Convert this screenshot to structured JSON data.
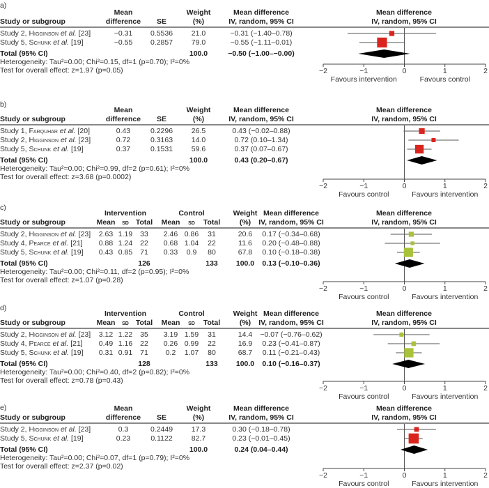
{
  "chart_data": [
    {
      "type": "forest",
      "label": "a)",
      "layout": "generic",
      "color": "#d9251d",
      "headers": {
        "study": "Study or subgroup",
        "md": [
          "Mean",
          "difference"
        ],
        "se": [
          "",
          "SE"
        ],
        "weight": [
          "Weight",
          "(%)"
        ],
        "ci": [
          "Mean difference",
          "IV, random, 95% CI"
        ],
        "plot": [
          "Mean difference",
          "IV, random, 95% CI"
        ]
      },
      "rows": [
        {
          "study": "Study 2,",
          "author": "Higginson",
          "etal": "et al.",
          "ref": "[23]",
          "md": "−0.31",
          "se": "0.5536",
          "weight": "21.0",
          "ci": "−0.31 (−1.40–0.78)",
          "est": -0.31,
          "lo": -1.4,
          "hi": 0.78,
          "w": 21.0
        },
        {
          "study": "Study 5,",
          "author": "Schunk",
          "etal": "et al.",
          "ref": "[19]",
          "md": "−0.55",
          "se": "0.2857",
          "weight": "79.0",
          "ci": "−0.55 (−1.11–0.01)",
          "est": -0.55,
          "lo": -1.11,
          "hi": 0.01,
          "w": 79.0
        }
      ],
      "total": {
        "label": "Total (95% CI)",
        "weight": "100.0",
        "ci": "−0.50 (−1.00–−0.00)",
        "est": -0.5,
        "lo": -1.0,
        "hi": -0.0
      },
      "heterogeneity": "Heterogeneity: Tau²=0.00; Chi²=0.15, df=1 (p=0.70); I²=0%",
      "overall": "Test for overall effect: z=1.97 (p=0.05)",
      "axis": {
        "min": -2,
        "max": 2,
        "ticks": [
          "−2",
          "−1",
          "0",
          "1",
          "2"
        ],
        "left_label": "Favours intervention",
        "right_label": "Favours control"
      }
    },
    {
      "type": "forest",
      "label": "b)",
      "layout": "generic",
      "color": "#d9251d",
      "headers": {
        "study": "Study or subgroup",
        "md": [
          "Mean",
          "difference"
        ],
        "se": [
          "",
          "SE"
        ],
        "weight": [
          "Weight",
          "(%)"
        ],
        "ci": [
          "Mean difference",
          "IV, random, 95% CI"
        ],
        "plot": [
          "Mean difference",
          "IV, random, 95% CI"
        ]
      },
      "rows": [
        {
          "study": "Study 1,",
          "author": "Farquhar",
          "etal": "et al.",
          "ref": "[20]",
          "md": "0.43",
          "se": "0.2296",
          "weight": "26.5",
          "ci": "0.43 (−0.02–0.88)",
          "est": 0.43,
          "lo": -0.02,
          "hi": 0.88,
          "w": 26.5
        },
        {
          "study": "Study 2,",
          "author": "Higginson",
          "etal": "et al.",
          "ref": "[23]",
          "md": "0.72",
          "se": "0.3163",
          "weight": "14.0",
          "ci": "0.72 (0.10–1.34)",
          "est": 0.72,
          "lo": 0.1,
          "hi": 1.34,
          "w": 14.0
        },
        {
          "study": "Study 5,",
          "author": "Schunk",
          "etal": "et al.",
          "ref": "[19]",
          "md": "0.37",
          "se": "0.1531",
          "weight": "59.6",
          "ci": "0.37 (0.07–0.67)",
          "est": 0.37,
          "lo": 0.07,
          "hi": 0.67,
          "w": 59.6
        }
      ],
      "total": {
        "label": "Total (95% CI)",
        "weight": "100.0",
        "ci": "0.43 (0.20–0.67)",
        "est": 0.43,
        "lo": 0.2,
        "hi": 0.67
      },
      "heterogeneity": "Heterogeneity: Tau²=0.00; Chi²=0.99, df=2 (p=0.61); I²=0%",
      "overall": "Test for overall effect: z=3.68 (p=0.0002)",
      "axis": {
        "min": -2,
        "max": 2,
        "ticks": [
          "−2",
          "−1",
          "0",
          "1",
          "2"
        ],
        "left_label": "Favours control",
        "right_label": "Favours intervention"
      }
    },
    {
      "type": "forest",
      "label": "c)",
      "layout": "groups",
      "color": "#a9c23b",
      "headers": {
        "study": "Study or subgroup",
        "intervention": "Intervention",
        "control": "Control",
        "mean": "Mean",
        "sd": "sd",
        "total": "Total",
        "weight": [
          "Weight",
          "(%)"
        ],
        "ci": [
          "Mean difference",
          "IV, random, 95% CI"
        ],
        "plot": [
          "Mean difference",
          "IV, random, 95% CI"
        ]
      },
      "rows": [
        {
          "study": "Study 2,",
          "author": "Higginson",
          "etal": "et al.",
          "ref": "[23]",
          "int_mean": "2.63",
          "int_sd": "1.19",
          "int_total": "33",
          "ctl_mean": "2.46",
          "ctl_sd": "0.86",
          "ctl_total": "31",
          "weight": "20.6",
          "ci": "0.17 (−0.34–0.68)",
          "est": 0.17,
          "lo": -0.34,
          "hi": 0.68,
          "w": 20.6
        },
        {
          "study": "Study 4,",
          "author": "Pearce",
          "etal": "et al.",
          "ref": "[21]",
          "int_mean": "0.88",
          "int_sd": "1.24",
          "int_total": "22",
          "ctl_mean": "0.68",
          "ctl_sd": "1.04",
          "ctl_total": "22",
          "weight": "11.6",
          "ci": "0.20 (−0.48–0.88)",
          "est": 0.2,
          "lo": -0.48,
          "hi": 0.88,
          "w": 11.6
        },
        {
          "study": "Study 5,",
          "author": "Schunk",
          "etal": "et al.",
          "ref": "[19]",
          "int_mean": "0.43",
          "int_sd": "0.85",
          "int_total": "71",
          "ctl_mean": "0.33",
          "ctl_sd": "0.9",
          "ctl_total": "80",
          "weight": "67.8",
          "ci": "0.10 (−0.18–0.38)",
          "est": 0.1,
          "lo": -0.18,
          "hi": 0.38,
          "w": 67.8
        }
      ],
      "total": {
        "label": "Total (95% CI)",
        "int_total": "126",
        "ctl_total": "133",
        "weight": "100.0",
        "ci": "0.13 (−0.10–0.36)",
        "est": 0.13,
        "lo": -0.1,
        "hi": 0.36
      },
      "heterogeneity": "Heterogeneity: Tau²=0.00; Chi²=0.11, df=2 (p=0.95); I²=0%",
      "overall": "Test for overall effect: z=1.07 (p=0.28)",
      "axis": {
        "min": -2,
        "max": 2,
        "ticks": [
          "−2",
          "−1",
          "0",
          "1",
          "2"
        ],
        "left_label": "Favours control",
        "right_label": "Favours intervention"
      }
    },
    {
      "type": "forest",
      "label": "d)",
      "layout": "groups",
      "color": "#a9c23b",
      "headers": {
        "study": "Study or subgroup",
        "intervention": "Intervention",
        "control": "Control",
        "mean": "Mean",
        "sd": "sd",
        "total": "Total",
        "weight": [
          "Weight",
          "(%)"
        ],
        "ci": [
          "Mean difference",
          "IV, random, 95% CI"
        ],
        "plot": [
          "Mean difference",
          "IV, random, 95% CI"
        ]
      },
      "rows": [
        {
          "study": "Study 2,",
          "author": "Higginson",
          "etal": "et al.",
          "ref": "[23]",
          "int_mean": "3.12",
          "int_sd": "1.22",
          "int_total": "35",
          "ctl_mean": "3.19",
          "ctl_sd": "1.59",
          "ctl_total": "31",
          "weight": "14.4",
          "ci": "−0.07 (−0.76–0.62)",
          "est": -0.07,
          "lo": -0.76,
          "hi": 0.62,
          "w": 14.4
        },
        {
          "study": "Study 4,",
          "author": "Pearce",
          "etal": "et al.",
          "ref": "[21]",
          "int_mean": "0.49",
          "int_sd": "1.16",
          "int_total": "22",
          "ctl_mean": "0.26",
          "ctl_sd": "0.99",
          "ctl_total": "22",
          "weight": "16.9",
          "ci": "0.23 (−0.41–0.87)",
          "est": 0.23,
          "lo": -0.41,
          "hi": 0.87,
          "w": 16.9
        },
        {
          "study": "Study 5,",
          "author": "Schunk",
          "etal": "et al.",
          "ref": "[19]",
          "int_mean": "0.31",
          "int_sd": "0.91",
          "int_total": "71",
          "ctl_mean": "0.2",
          "ctl_sd": "1.07",
          "ctl_total": "80",
          "weight": "68.7",
          "ci": "0.11 (−0.21–0.43)",
          "est": 0.11,
          "lo": -0.21,
          "hi": 0.43,
          "w": 68.7
        }
      ],
      "total": {
        "label": "Total (95% CI)",
        "int_total": "128",
        "ctl_total": "133",
        "weight": "100.0",
        "ci": "0.10 (−0.16–0.37)",
        "est": 0.1,
        "lo": -0.16,
        "hi": 0.37
      },
      "heterogeneity": "Heterogeneity: Tau²=0.00; Chi²=0.40, df=2 (p=0.82); I²=0%",
      "overall": "Test for overall effect: z=0.78 (p=0.43)",
      "axis": {
        "min": -2,
        "max": 2,
        "ticks": [
          "−2",
          "−1",
          "0",
          "1",
          "2"
        ],
        "left_label": "Favours control",
        "right_label": "Favours intervention"
      }
    },
    {
      "type": "forest",
      "label": "e)",
      "layout": "generic",
      "color": "#d9251d",
      "headers": {
        "study": "Study or subgroup",
        "md": [
          "Mean",
          "difference"
        ],
        "se": [
          "",
          "SE"
        ],
        "weight": [
          "Weight",
          "(%)"
        ],
        "ci": [
          "Mean difference",
          "IV, random, 95% CI"
        ],
        "plot": [
          "Mean difference",
          "IV, random, 95% CI"
        ]
      },
      "rows": [
        {
          "study": "Study 2,",
          "author": "Higginson",
          "etal": "et al.",
          "ref": "[23]",
          "md": "0.3",
          "se": "0.2449",
          "weight": "17.3",
          "ci": "0.30 (−0.18–0.78)",
          "est": 0.3,
          "lo": -0.18,
          "hi": 0.78,
          "w": 17.3
        },
        {
          "study": "Study 5,",
          "author": "Schunk",
          "etal": "et al.",
          "ref": "[19]",
          "md": "0.23",
          "se": "0.1122",
          "weight": "82.7",
          "ci": "0.23 (−0.01–0.45)",
          "est": 0.23,
          "lo": -0.01,
          "hi": 0.45,
          "w": 82.7
        }
      ],
      "total": {
        "label": "Total (95% CI)",
        "weight": "100.0",
        "ci": "0.24 (0.04–0.44)",
        "est": 0.24,
        "lo": 0.04,
        "hi": 0.44
      },
      "heterogeneity": "Heterogeneity: Tau²=0.00; Chi²=0.07, df=1 (p=0.79); I²=0%",
      "overall": "Test for overall effect: z=2.37 (p=0.02)",
      "axis": {
        "min": -2,
        "max": 2,
        "ticks": [
          "−2",
          "−1",
          "0",
          "1",
          "2"
        ],
        "left_label": "Favours control",
        "right_label": "Favours intervention"
      }
    }
  ]
}
